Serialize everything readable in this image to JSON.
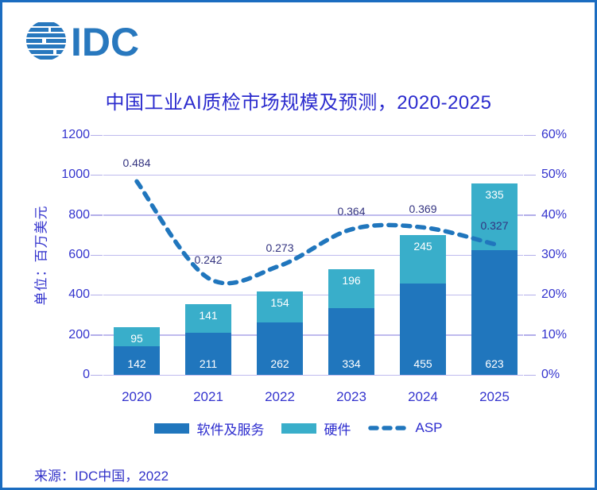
{
  "logo": {
    "text": "IDC",
    "color": "#2878be"
  },
  "footer": {
    "source": "来源：IDC中国，2022"
  },
  "chart_data": {
    "type": "bar",
    "subtype": "stacked-bars-with-dashed-line",
    "title": "中国工业AI质检市场规模及预测，2020-2025",
    "categories": [
      "2020",
      "2021",
      "2022",
      "2023",
      "2024",
      "2025"
    ],
    "series": [
      {
        "name": "软件及服务",
        "type": "bar",
        "stacked": true,
        "color": "#2076bd",
        "values": [
          142,
          211,
          262,
          334,
          455,
          623
        ]
      },
      {
        "name": "硬件",
        "type": "bar",
        "stacked": true,
        "color": "#39aeca",
        "values": [
          95,
          141,
          154,
          196,
          245,
          335
        ]
      },
      {
        "name": "ASP",
        "type": "line",
        "style": "dashed",
        "axis": "right",
        "color": "#2076bd",
        "values": [
          0.484,
          0.242,
          0.273,
          0.364,
          0.369,
          0.327
        ]
      }
    ],
    "ylabel": "单位：百万美元",
    "xlabel": "",
    "left_axis": {
      "ticks": [
        "0",
        "200",
        "400",
        "600",
        "800",
        "1000",
        "1200"
      ],
      "lim": [
        0,
        1200
      ]
    },
    "right_axis": {
      "ticks": [
        "0%",
        "10%",
        "20%",
        "30%",
        "40%",
        "50%",
        "60%"
      ],
      "lim": [
        0,
        0.6
      ]
    },
    "legend": {
      "position": "bottom",
      "items": [
        "软件及服务",
        "硬件",
        "ASP"
      ]
    },
    "grid": true,
    "colors": {
      "grid": "#bfbbee",
      "axis_text": "#3434ce",
      "title_text": "#2b2bce",
      "line_label_text": "#333380",
      "bar_label_text": "#ffffff",
      "frame_border": "#1b6cc0"
    }
  }
}
